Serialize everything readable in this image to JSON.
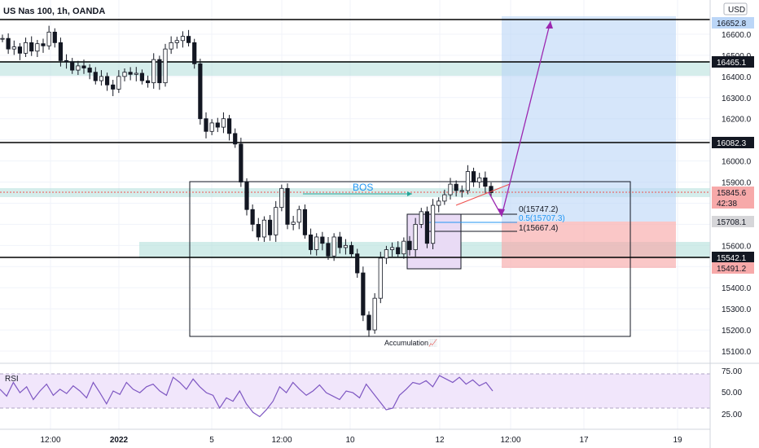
{
  "header": {
    "symbol_title": "US Nas 100, 1h, OANDA",
    "currency_button": "USD"
  },
  "annotations": {
    "bos": "BOS",
    "accumulation": "Accumulation📈",
    "fib_0": "0(15747.2)",
    "fib_05": "0.5(15707.3)",
    "fib_1": "1(15667.4)"
  },
  "colors": {
    "candle": "#131722",
    "zone_green": "#b2dfdb",
    "target_blue": "#bbd6f7",
    "stop_red": "#f7a9a9",
    "accumulation_box": "#e9dbf5",
    "arrow_purple": "#9c27b0",
    "bos_line": "#26a69a",
    "bos_text": "#2196f3",
    "rsi_line": "#7e57c2",
    "rsi_band": "#f1e6fb"
  },
  "price_axis": {
    "ticks": [
      "16600.0",
      "16500.0",
      "16400.0",
      "16300.0",
      "16200.0",
      "16000.0",
      "15900.0",
      "15600.0",
      "15400.0",
      "15300.0",
      "15200.0",
      "15100.0"
    ],
    "labels": [
      {
        "text": "16652.8",
        "style": "blue",
        "price": 16652.8
      },
      {
        "text": "16465.1",
        "style": "black",
        "price": 16465.1
      },
      {
        "text": "16082.3",
        "style": "black",
        "price": 16082.3
      },
      {
        "text": "15845.6",
        "style": "red",
        "price": 15845.6
      },
      {
        "text": "42:38",
        "style": "red",
        "price": 15800
      },
      {
        "text": "15708.1",
        "style": "gray",
        "price": 15708.1
      },
      {
        "text": "15542.1",
        "style": "black",
        "price": 15542.1
      },
      {
        "text": "15491.2",
        "style": "red",
        "price": 15491.2
      }
    ]
  },
  "rsi": {
    "label": "RSI",
    "ticks": [
      "75.00",
      "50.00",
      "25.00"
    ],
    "upper": 70,
    "lower": 30
  },
  "time_axis": {
    "ticks": [
      "12:00",
      "2022",
      "5",
      "12:00",
      "10",
      "12",
      "12:00",
      "17",
      "19"
    ]
  },
  "chart_data": {
    "type": "line",
    "title": "US Nas 100, 1h, OANDA",
    "xlabel": "",
    "ylabel": "",
    "ylim": [
      15050,
      16700
    ],
    "series": [
      {
        "name": "",
        "values": [
          16580,
          16530,
          16540,
          16510,
          16560,
          16520,
          16555,
          16545,
          16610,
          16560,
          16475,
          16470,
          16430,
          16450,
          16440,
          16420,
          16380,
          16400,
          16360,
          16340,
          16400,
          16420,
          16410,
          16415,
          16380,
          16370,
          16480,
          16370,
          16530,
          16560,
          16570,
          16590,
          16560,
          16460,
          16200,
          16140,
          16180,
          16160,
          16200,
          16130,
          16080,
          15900,
          15770,
          15700,
          15640,
          15720,
          15650,
          15780,
          15870,
          15700,
          15710,
          15770,
          15650,
          15580,
          15640,
          15610,
          15550,
          15640,
          15590,
          15600,
          15560,
          15470,
          15270,
          15200,
          15350,
          15540,
          15580,
          15590,
          15560,
          15620,
          15580,
          15700,
          15760,
          15610,
          15790,
          15810,
          15840,
          15890,
          15860,
          15860,
          15950,
          15900,
          15920,
          15880,
          15850
        ],
        "comment": "approximate hourly close path read from candles"
      }
    ],
    "levels": [
      16652.8,
      16465.1,
      16082.3,
      15845.6,
      15708.1,
      15542.1,
      15491.2
    ],
    "fibonacci": [
      {
        "level": 0,
        "price": 15747.2
      },
      {
        "level": 0.5,
        "price": 15707.3
      },
      {
        "level": 1,
        "price": 15667.4
      }
    ],
    "rsi_values": [
      52,
      44,
      60,
      48,
      55,
      40,
      50,
      58,
      45,
      52,
      47,
      56,
      50,
      42,
      60,
      48,
      35,
      50,
      46,
      60,
      52,
      48,
      55,
      58,
      50,
      45,
      66,
      60,
      52,
      64,
      55,
      48,
      45,
      30,
      42,
      38,
      50,
      35,
      25,
      20,
      28,
      38,
      55,
      48,
      60,
      52,
      45,
      50,
      57,
      48,
      44,
      40,
      50,
      48,
      42,
      58,
      48,
      38,
      28,
      30,
      45,
      52,
      60,
      58,
      62,
      55,
      68,
      64,
      60,
      66,
      58,
      63,
      56,
      60,
      50
    ],
    "rsi_ylim": [
      15,
      85
    ]
  }
}
